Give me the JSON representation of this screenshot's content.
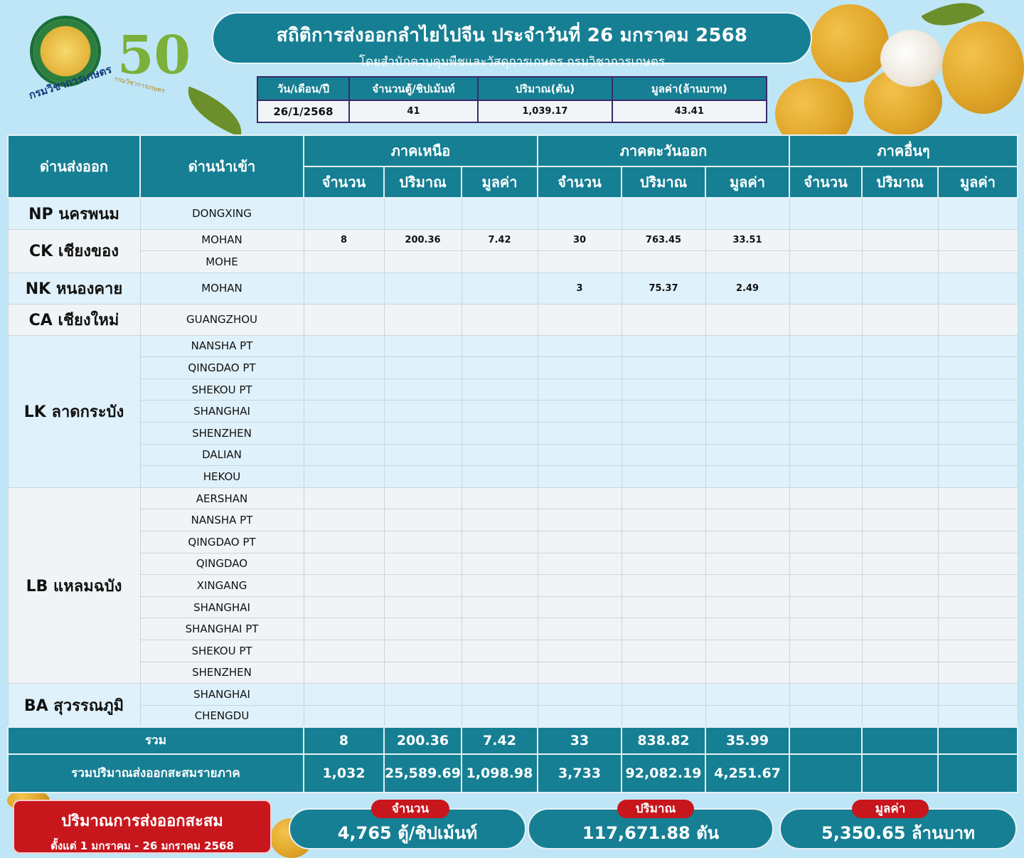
{
  "logos": {
    "agency_text": "กรมวิชาการเกษตร",
    "anniversary_text": "กรมวิชาการเกษตร"
  },
  "title": {
    "main": "สถิติการส่งออกลำไยไปจีน ประจำวันที่ 26 มกราคม 2568",
    "sub": "โดยสำนักควบคุมพืชและวัสดุการเกษตร กรมวิชาการเกษตร"
  },
  "summary": {
    "headers": [
      "วัน/เดือน/ปี",
      "จำนวนตู้/ชิปเม้นท์",
      "ปริมาณ(ตัน)",
      "มูลค่า(ล้านบาท)"
    ],
    "values": [
      "26/1/2568",
      "41",
      "1,039.17",
      "43.41"
    ]
  },
  "table": {
    "col_export": "ด่านส่งออก",
    "col_import": "ด่านนำเข้า",
    "regions": [
      "ภาคเหนือ",
      "ภาคตะวันออก",
      "ภาคอื่นๆ"
    ],
    "sub_headers": [
      "จำนวน",
      "ปริมาณ",
      "มูลค่า"
    ],
    "groups": [
      {
        "name": "NP นครพนม",
        "rows": [
          {
            "port": "DONGXING",
            "vals": [
              "",
              "",
              "",
              "",
              "",
              "",
              "",
              "",
              ""
            ]
          }
        ]
      },
      {
        "name": "CK เชียงของ",
        "rows": [
          {
            "port": "MOHAN",
            "vals": [
              "8",
              "200.36",
              "7.42",
              "30",
              "763.45",
              "33.51",
              "",
              "",
              ""
            ]
          },
          {
            "port": "MOHE",
            "vals": [
              "",
              "",
              "",
              "",
              "",
              "",
              "",
              "",
              ""
            ]
          }
        ]
      },
      {
        "name": "NK หนองคาย",
        "rows": [
          {
            "port": "MOHAN",
            "vals": [
              "",
              "",
              "",
              "3",
              "75.37",
              "2.49",
              "",
              "",
              ""
            ]
          }
        ]
      },
      {
        "name": "CA เชียงใหม่",
        "rows": [
          {
            "port": "GUANGZHOU",
            "vals": [
              "",
              "",
              "",
              "",
              "",
              "",
              "",
              "",
              ""
            ]
          }
        ]
      },
      {
        "name": "LK ลาดกระบัง",
        "rows": [
          {
            "port": "NANSHA PT"
          },
          {
            "port": "QINGDAO PT"
          },
          {
            "port": "SHEKOU PT"
          },
          {
            "port": "SHANGHAI"
          },
          {
            "port": "SHENZHEN"
          },
          {
            "port": "DALIAN"
          },
          {
            "port": "HEKOU"
          }
        ]
      },
      {
        "name": "LB แหลมฉบัง",
        "rows": [
          {
            "port": "AERSHAN"
          },
          {
            "port": "NANSHA PT"
          },
          {
            "port": "QINGDAO PT"
          },
          {
            "port": "QINGDAO"
          },
          {
            "port": "XINGANG"
          },
          {
            "port": "SHANGHAI"
          },
          {
            "port": "SHANGHAI PT"
          },
          {
            "port": "SHEKOU PT"
          },
          {
            "port": "SHENZHEN"
          }
        ]
      },
      {
        "name": "BA สุวรรณภูมิ",
        "rows": [
          {
            "port": "SHANGHAI"
          },
          {
            "port": "CHENGDU"
          }
        ]
      }
    ],
    "total": {
      "label": "รวม",
      "vals": [
        "8",
        "200.36",
        "7.42",
        "33",
        "838.82",
        "35.99",
        "",
        "",
        ""
      ]
    },
    "cumulative": {
      "label": "รวมปริมาณส่งออกสะสมรายภาค",
      "vals": [
        "1,032",
        "25,589.69",
        "1,098.98",
        "3,733",
        "92,082.19",
        "4,251.67",
        "",
        "",
        ""
      ]
    }
  },
  "footer": {
    "red_title": "ปริมาณการส่งออกสะสม",
    "red_sub": "ตั้งแต่ 1 มกราคม  - 26 มกราคม 2568",
    "count_tag": "จำนวน",
    "count_value": "4,765 ตู้/ชิปเม้นท์",
    "volume_tag": "ปริมาณ",
    "volume_value": "117,671.88 ตัน",
    "value_tag": "มูลค่า",
    "value_value": "5,350.65 ล้านบาท"
  },
  "colors": {
    "background": "#bfe6f6",
    "header_teal": "#167f93",
    "accent_red": "#c8161d"
  }
}
